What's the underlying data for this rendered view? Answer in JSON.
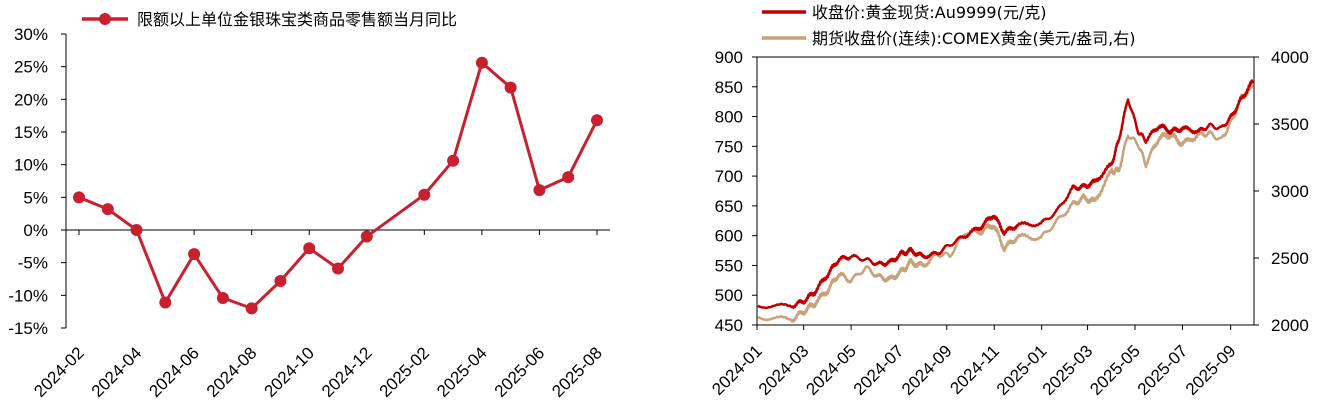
{
  "chart_data": [
    {
      "type": "line",
      "title": "",
      "xlabel": "",
      "ylabel": "",
      "legend": {
        "position": "top",
        "entries": [
          "限额以上单位金银珠宝类商品零售额当月同比"
        ]
      },
      "colors": {
        "series": "#C8202F"
      },
      "x_tick_labels": [
        "2024-02",
        "2024-04",
        "2024-06",
        "2024-08",
        "2024-10",
        "2024-12",
        "2025-02",
        "2025-04",
        "2025-06",
        "2025-08"
      ],
      "y_tick_labels": [
        "30%",
        "25%",
        "20%",
        "15%",
        "10%",
        "5%",
        "0%",
        "-5%",
        "-10%",
        "-15%"
      ],
      "ylim": [
        -15,
        30
      ],
      "grid": false,
      "series": [
        {
          "name": "限额以上单位金银珠宝类商品零售额当月同比",
          "x": [
            "2024-02",
            "2024-03",
            "2024-04",
            "2024-05",
            "2024-06",
            "2024-07",
            "2024-08",
            "2024-09",
            "2024-10",
            "2024-11",
            "2024-12",
            "2025-02",
            "2025-03",
            "2025-04",
            "2025-05",
            "2025-06",
            "2025-07",
            "2025-08"
          ],
          "values": [
            5.0,
            3.2,
            0.0,
            -11.1,
            -3.7,
            -10.4,
            -12.0,
            -7.8,
            -2.8,
            -5.9,
            -1.0,
            5.4,
            10.6,
            25.6,
            21.8,
            6.1,
            8.1,
            16.8
          ]
        }
      ]
    },
    {
      "type": "line",
      "title": "",
      "xlabel": "",
      "ylabel": "",
      "legend": {
        "position": "top",
        "entries": [
          "收盘价:黄金现货:Au9999(元/克)",
          "期货收盘价(连续):COMEX黄金(美元/盎司,右)"
        ]
      },
      "colors": {
        "au9999": "#C00000",
        "comex": "#C8A27A"
      },
      "x_tick_labels": [
        "2024-01",
        "2024-03",
        "2024-05",
        "2024-07",
        "2024-09",
        "2024-11",
        "2025-01",
        "2025-03",
        "2025-05",
        "2025-07",
        "2025-09"
      ],
      "y_tick_labels": [
        "900",
        "850",
        "800",
        "750",
        "700",
        "650",
        "600",
        "550",
        "500",
        "450"
      ],
      "y2_tick_labels": [
        "4000",
        "3500",
        "3000",
        "2500",
        "2000"
      ],
      "ylim": [
        450,
        900
      ],
      "y2lim": [
        2000,
        4000
      ],
      "grid": false,
      "series": [
        {
          "name": "收盘价:黄金现货:Au9999(元/克)",
          "axis": "left",
          "x": [
            "2024-01-02",
            "2024-02-15",
            "2024-03-01",
            "2024-03-15",
            "2024-04-01",
            "2024-04-15",
            "2024-05-01",
            "2024-05-20",
            "2024-06-05",
            "2024-06-20",
            "2024-07-05",
            "2024-07-17",
            "2024-08-01",
            "2024-08-20",
            "2024-09-05",
            "2024-09-25",
            "2024-10-15",
            "2024-10-31",
            "2024-11-14",
            "2024-12-01",
            "2024-12-31",
            "2025-01-20",
            "2025-02-10",
            "2025-02-24",
            "2025-03-10",
            "2025-04-01",
            "2025-04-10",
            "2025-04-22",
            "2025-05-05",
            "2025-05-15",
            "2025-06-01",
            "2025-06-16",
            "2025-07-01",
            "2025-07-22",
            "2025-08-05",
            "2025-08-20",
            "2025-09-02",
            "2025-09-15",
            "2025-09-30"
          ],
          "values": [
            482,
            482,
            490,
            505,
            535,
            560,
            565,
            560,
            552,
            555,
            570,
            575,
            565,
            570,
            585,
            600,
            615,
            635,
            605,
            618,
            620,
            640,
            680,
            682,
            690,
            720,
            760,
            830,
            775,
            760,
            785,
            775,
            780,
            775,
            785,
            780,
            800,
            830,
            860
          ]
        },
        {
          "name": "期货收盘价(连续):COMEX黄金(美元/盎司,右)",
          "axis": "right",
          "x": [
            "2024-01-02",
            "2024-02-15",
            "2024-03-01",
            "2024-03-15",
            "2024-04-01",
            "2024-04-15",
            "2024-05-01",
            "2024-05-20",
            "2024-06-05",
            "2024-06-20",
            "2024-07-05",
            "2024-07-17",
            "2024-08-01",
            "2024-08-20",
            "2024-09-05",
            "2024-09-25",
            "2024-10-15",
            "2024-10-31",
            "2024-11-14",
            "2024-12-01",
            "2024-12-31",
            "2025-01-20",
            "2025-02-10",
            "2025-02-24",
            "2025-03-10",
            "2025-04-01",
            "2025-04-10",
            "2025-04-22",
            "2025-05-05",
            "2025-05-15",
            "2025-06-01",
            "2025-06-16",
            "2025-07-01",
            "2025-07-22",
            "2025-08-05",
            "2025-08-20",
            "2025-09-02",
            "2025-09-15",
            "2025-09-30"
          ],
          "values": [
            2060,
            2040,
            2100,
            2160,
            2260,
            2380,
            2330,
            2430,
            2360,
            2340,
            2400,
            2470,
            2440,
            2530,
            2520,
            2690,
            2700,
            2750,
            2570,
            2660,
            2650,
            2770,
            2900,
            2950,
            2920,
            3150,
            3150,
            3420,
            3350,
            3200,
            3400,
            3420,
            3350,
            3420,
            3430,
            3380,
            3520,
            3700,
            3780
          ]
        }
      ]
    }
  ]
}
